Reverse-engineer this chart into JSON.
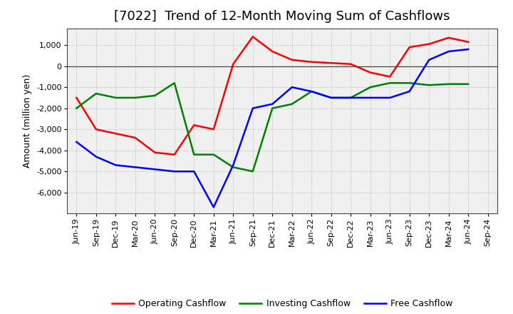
{
  "title": "[7022]  Trend of 12-Month Moving Sum of Cashflows",
  "ylabel": "Amount (million yen)",
  "x_labels": [
    "Jun-19",
    "Sep-19",
    "Dec-19",
    "Mar-20",
    "Jun-20",
    "Sep-20",
    "Dec-20",
    "Mar-21",
    "Jun-21",
    "Sep-21",
    "Dec-21",
    "Mar-22",
    "Jun-22",
    "Sep-22",
    "Dec-22",
    "Mar-23",
    "Jun-23",
    "Sep-23",
    "Dec-23",
    "Mar-24",
    "Jun-24",
    "Sep-24"
  ],
  "operating": [
    -1500,
    -3000,
    -3200,
    -3400,
    -4100,
    -4200,
    -2800,
    -3000,
    100,
    1400,
    700,
    300,
    200,
    150,
    100,
    -300,
    -500,
    900,
    1050,
    1350,
    1150,
    null
  ],
  "investing": [
    -2000,
    -1300,
    -1500,
    -1500,
    -1400,
    -800,
    -4200,
    -4200,
    -4800,
    -5000,
    -2000,
    -1800,
    -1200,
    -1500,
    -1500,
    -1000,
    -800,
    -800,
    -900,
    -850,
    -850,
    null
  ],
  "free": [
    -3600,
    -4300,
    -4700,
    -4800,
    -4900,
    -5000,
    -5000,
    -6700,
    -4700,
    -2000,
    -1800,
    -1000,
    -1200,
    -1500,
    -1500,
    -1500,
    -1500,
    -1200,
    300,
    700,
    800,
    null
  ],
  "ylim": [
    -7000,
    1800
  ],
  "yticks": [
    -6000,
    -5000,
    -4000,
    -3000,
    -2000,
    -1000,
    0,
    1000
  ],
  "operating_color": "#ff0000",
  "investing_color": "#008000",
  "free_color": "#0000ff",
  "bg_color": "#ffffff",
  "plot_bg_color": "#f0f0f0",
  "grid_color": "#999999",
  "title_fontsize": 13,
  "label_fontsize": 9,
  "tick_fontsize": 8
}
